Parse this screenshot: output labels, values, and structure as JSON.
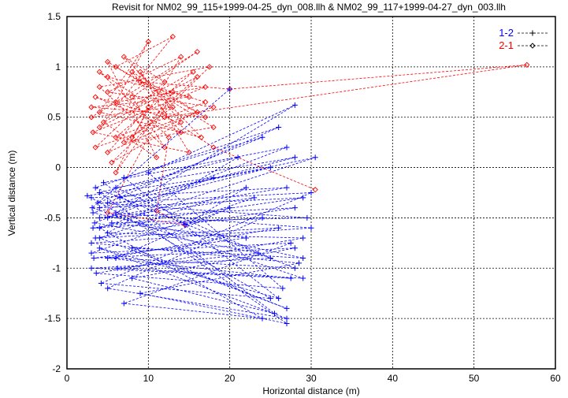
{
  "chart_data": {
    "type": "line",
    "title": "Revisit for NM02_99_115+1999-04-25_dyn_008.llh & NM02_99_117+1999-04-27_dyn_003.llh",
    "xlabel": "Horizontal distance (m)",
    "ylabel": "Vertical distance (m)",
    "xlim": [
      0,
      60
    ],
    "ylim": [
      -2,
      1.5
    ],
    "xticks": [
      "0",
      "10",
      "20",
      "30",
      "40",
      "50",
      "60"
    ],
    "yticks": [
      "1.5",
      "1",
      "0.5",
      "0",
      "-0.5",
      "-1",
      "-1.5",
      "-2"
    ],
    "grid": true,
    "legend_position": "top-right",
    "series": [
      {
        "name": "1-2",
        "color": "#0000ff",
        "marker": "plus",
        "points": [
          [
            3,
            -0.3
          ],
          [
            27,
            -0.2
          ],
          [
            4,
            -0.5
          ],
          [
            28,
            -0.4
          ],
          [
            3.5,
            -0.7
          ],
          [
            26,
            -0.6
          ],
          [
            5,
            -0.9
          ],
          [
            27.5,
            -1.1
          ],
          [
            3,
            -1.0
          ],
          [
            25,
            -0.9
          ],
          [
            6,
            -0.2
          ],
          [
            28,
            0.1
          ],
          [
            4,
            -0.4
          ],
          [
            29,
            -0.3
          ],
          [
            3.2,
            -0.6
          ],
          [
            24,
            -0.5
          ],
          [
            5,
            -1.2
          ],
          [
            27,
            -1.5
          ],
          [
            4,
            -0.8
          ],
          [
            26,
            -1.3
          ],
          [
            7,
            -0.1
          ],
          [
            24,
            0.3
          ],
          [
            3.8,
            -0.35
          ],
          [
            29.5,
            -0.5
          ],
          [
            5.5,
            -0.55
          ],
          [
            22,
            -0.7
          ],
          [
            3.3,
            -0.9
          ],
          [
            28,
            -0.8
          ],
          [
            8,
            -1.1
          ],
          [
            25.5,
            -1.45
          ],
          [
            4.5,
            -0.15
          ],
          [
            27,
            0.2
          ],
          [
            6,
            -0.45
          ],
          [
            30,
            -0.6
          ],
          [
            3,
            -0.75
          ],
          [
            28.5,
            -0.95
          ],
          [
            9,
            -1.25
          ],
          [
            27,
            -1.55
          ],
          [
            4,
            -0.25
          ],
          [
            21,
            0.1
          ],
          [
            5,
            -0.65
          ],
          [
            29,
            -0.7
          ],
          [
            3.6,
            -1.05
          ],
          [
            26.5,
            -1.2
          ],
          [
            10,
            -0.05
          ],
          [
            28,
            0.62
          ],
          [
            5,
            -0.5
          ],
          [
            23,
            -0.3
          ],
          [
            3,
            -0.85
          ],
          [
            27.5,
            -0.75
          ],
          [
            7,
            -1.35
          ],
          [
            24,
            -1.5
          ],
          [
            4,
            -0.6
          ],
          [
            30.5,
            0.1
          ],
          [
            6.5,
            -0.3
          ],
          [
            25,
            0
          ],
          [
            3.2,
            -0.45
          ],
          [
            29,
            -0.9
          ],
          [
            8,
            -0.8
          ],
          [
            27,
            -1.4
          ],
          [
            4,
            -0.7
          ],
          [
            22,
            -0.2
          ],
          [
            14.5,
            -0.57
          ],
          [
            20,
            -0.4
          ],
          [
            6,
            -0.9
          ],
          [
            28,
            -1.0
          ],
          [
            3.5,
            -0.2
          ],
          [
            26,
            0.4
          ],
          [
            5,
            -0.35
          ],
          [
            30,
            -0.25
          ],
          [
            4.2,
            -1.15
          ],
          [
            25,
            -1.3
          ],
          [
            2.5,
            -0.28
          ],
          [
            18,
            -0.1
          ],
          [
            3.4,
            -0.55
          ],
          [
            23.5,
            -0.85
          ],
          [
            6.2,
            -1.0
          ],
          [
            29,
            -1.1
          ],
          [
            3.1,
            -0.4
          ],
          [
            20,
            0.78
          ]
        ]
      },
      {
        "name": "2-1",
        "color": "#ff0000",
        "marker": "diamond",
        "points": [
          [
            5,
            0.9
          ],
          [
            15,
            0.7
          ],
          [
            3,
            0.6
          ],
          [
            17,
            0.5
          ],
          [
            6,
            1.0
          ],
          [
            13,
            1.3
          ],
          [
            4,
            0.4
          ],
          [
            16,
            0.9
          ],
          [
            8,
            0.3
          ],
          [
            14,
            1.1
          ],
          [
            5,
            0.75
          ],
          [
            18,
            0.6
          ],
          [
            3.5,
            0.2
          ],
          [
            12,
            0.85
          ],
          [
            7,
            1.1
          ],
          [
            16.5,
            0.3
          ],
          [
            4,
            0.55
          ],
          [
            10,
            1.25
          ],
          [
            6,
            0.65
          ],
          [
            17,
            0.8
          ],
          [
            3.2,
            0.35
          ],
          [
            15,
            0.15
          ],
          [
            9,
            0.95
          ],
          [
            14,
            0.45
          ],
          [
            5.5,
            0.05
          ],
          [
            17.5,
            1.0
          ],
          [
            4,
            0.8
          ],
          [
            12,
            0.2
          ],
          [
            8,
            0.7
          ],
          [
            16,
            1.15
          ],
          [
            3,
            0.5
          ],
          [
            13,
            0.6
          ],
          [
            7,
            0.25
          ],
          [
            18,
            0.4
          ],
          [
            5,
            1.05
          ],
          [
            11,
            0.1
          ],
          [
            4.5,
            0.45
          ],
          [
            15.5,
            0.95
          ],
          [
            6,
            0.3
          ],
          [
            17,
            0.65
          ],
          [
            9,
            0.85
          ],
          [
            20,
            0.78
          ],
          [
            56.5,
            1.02
          ],
          [
            12,
            0.5
          ],
          [
            3.5,
            0.7
          ],
          [
            14,
            0.35
          ],
          [
            8,
            0.95
          ],
          [
            16,
            0.55
          ],
          [
            5,
            0.15
          ],
          [
            10,
            0.6
          ],
          [
            6,
            -0.05
          ],
          [
            13,
            0.75
          ],
          [
            5,
            -0.45
          ],
          [
            14.5,
            -0.57
          ],
          [
            11,
            -0.43
          ],
          [
            12.5,
            0.3
          ],
          [
            4,
            0.95
          ],
          [
            18,
            0.2
          ],
          [
            30.5,
            -0.22
          ]
        ]
      }
    ]
  }
}
